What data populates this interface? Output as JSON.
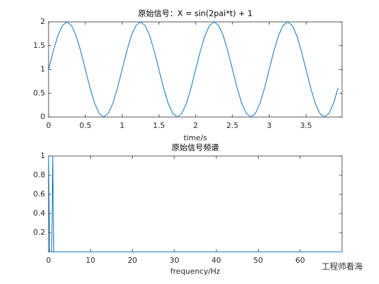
{
  "chart_data": [
    {
      "type": "line",
      "title": "原始信号：X = sin(2pai*t) + 1",
      "xlabel": "time/s",
      "color": "#0072bd",
      "x": [
        0,
        0.0625,
        0.125,
        0.1875,
        0.25,
        0.3125,
        0.375,
        0.4375,
        0.5,
        0.5625,
        0.625,
        0.6875,
        0.75,
        0.8125,
        0.875,
        0.9375,
        1,
        1.0625,
        1.125,
        1.1875,
        1.25,
        1.3125,
        1.375,
        1.4375,
        1.5,
        1.5625,
        1.625,
        1.6875,
        1.75,
        1.8125,
        1.875,
        1.9375,
        2,
        2.0625,
        2.125,
        2.1875,
        2.25,
        2.3125,
        2.375,
        2.4375,
        2.5,
        2.5625,
        2.625,
        2.6875,
        2.75,
        2.8125,
        2.875,
        2.9375,
        3,
        3.0625,
        3.125,
        3.1875,
        3.25,
        3.3125,
        3.375,
        3.4375,
        3.5,
        3.5625,
        3.625,
        3.6875,
        3.75,
        3.8125,
        3.875,
        3.9375
      ],
      "values": [
        1,
        1.3827,
        1.7071,
        1.9239,
        2,
        1.9239,
        1.7071,
        1.3827,
        1,
        0.6173,
        0.2929,
        0.0761,
        0,
        0.0761,
        0.2929,
        0.6173,
        1,
        1.3827,
        1.7071,
        1.9239,
        2,
        1.9239,
        1.7071,
        1.3827,
        1,
        0.6173,
        0.2929,
        0.0761,
        0,
        0.0761,
        0.2929,
        0.6173,
        1,
        1.3827,
        1.7071,
        1.9239,
        2,
        1.9239,
        1.7071,
        1.3827,
        1,
        0.6173,
        0.2929,
        0.0761,
        0,
        0.0761,
        0.2929,
        0.6173,
        1,
        1.3827,
        1.7071,
        1.9239,
        2,
        1.9239,
        1.7071,
        1.3827,
        1,
        0.6173,
        0.2929,
        0.0761,
        0,
        0.0761,
        0.2929,
        0.6173
      ],
      "xlim": [
        0,
        3.99
      ],
      "xticks": [
        0,
        0.5,
        1,
        1.5,
        2,
        2.5,
        3,
        3.5
      ],
      "ylim": [
        0,
        2
      ],
      "yticks": [
        0,
        0.5,
        1,
        1.5,
        2
      ]
    },
    {
      "type": "line",
      "title": "原始信号频谱",
      "xlabel": "frequency/Hz",
      "color": "#0072bd",
      "x": [
        0,
        0.25,
        0.5,
        0.75,
        1,
        1.25,
        1.5,
        70
      ],
      "values": [
        1,
        0,
        0,
        0,
        1,
        0,
        0,
        0
      ],
      "xlim": [
        0,
        70
      ],
      "xticks": [
        0,
        10,
        20,
        30,
        40,
        50,
        60
      ],
      "ylim": [
        0,
        1
      ],
      "yticks": [
        0.2,
        0.4,
        0.6,
        0.8,
        1
      ]
    }
  ],
  "watermark": "工程师看海"
}
